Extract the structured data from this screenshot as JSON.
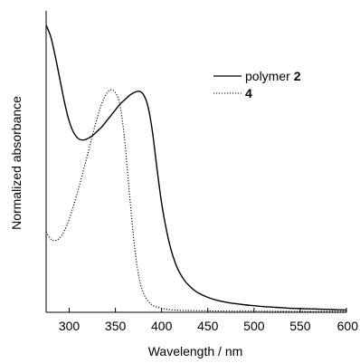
{
  "chart_data": {
    "type": "line",
    "xlabel": "Wavelength / nm",
    "ylabel": "Normalized absorbance",
    "xlim": [
      275,
      600
    ],
    "ylim": [
      0,
      1.05
    ],
    "x_ticks": [
      300,
      350,
      400,
      450,
      500,
      550,
      600
    ],
    "x_tick_labels": [
      "300",
      "350",
      "400",
      "450",
      "500",
      "550",
      "600"
    ],
    "y_ticks_labeled": false,
    "grid": false,
    "legend_position": "top-right",
    "series": [
      {
        "name": "polymer",
        "name_bold": "2",
        "line_style": "solid",
        "color": "#000000",
        "x": [
          275,
          280,
          285,
          290,
          295,
          300,
          305,
          310,
          315,
          320,
          325,
          330,
          335,
          340,
          345,
          350,
          355,
          360,
          365,
          370,
          375,
          380,
          385,
          390,
          395,
          400,
          405,
          410,
          415,
          420,
          425,
          430,
          435,
          440,
          450,
          460,
          470,
          480,
          490,
          500,
          510,
          520,
          530,
          540,
          550,
          560,
          570,
          580,
          590,
          600
        ],
        "y": [
          1.0,
          0.96,
          0.89,
          0.81,
          0.73,
          0.665,
          0.625,
          0.605,
          0.6,
          0.605,
          0.615,
          0.63,
          0.645,
          0.665,
          0.685,
          0.705,
          0.725,
          0.74,
          0.755,
          0.765,
          0.77,
          0.76,
          0.72,
          0.63,
          0.5,
          0.38,
          0.29,
          0.22,
          0.17,
          0.135,
          0.11,
          0.092,
          0.078,
          0.067,
          0.052,
          0.042,
          0.035,
          0.03,
          0.026,
          0.023,
          0.02,
          0.018,
          0.016,
          0.014,
          0.013,
          0.012,
          0.011,
          0.01,
          0.009,
          0.008
        ]
      },
      {
        "name": "4",
        "name_bold": "",
        "line_style": "dotted",
        "color": "#000000",
        "x": [
          275,
          280,
          285,
          290,
          295,
          300,
          305,
          310,
          315,
          320,
          325,
          330,
          335,
          340,
          345,
          350,
          355,
          360,
          365,
          370,
          375,
          380,
          385,
          390,
          395,
          400,
          405,
          410,
          420,
          430,
          450,
          475,
          500,
          550,
          600
        ],
        "y": [
          0.28,
          0.255,
          0.25,
          0.26,
          0.285,
          0.325,
          0.375,
          0.43,
          0.49,
          0.55,
          0.615,
          0.675,
          0.725,
          0.76,
          0.775,
          0.765,
          0.72,
          0.6,
          0.42,
          0.25,
          0.13,
          0.07,
          0.04,
          0.025,
          0.018,
          0.014,
          0.011,
          0.009,
          0.007,
          0.006,
          0.005,
          0.004,
          0.004,
          0.003,
          0.003
        ]
      }
    ]
  }
}
